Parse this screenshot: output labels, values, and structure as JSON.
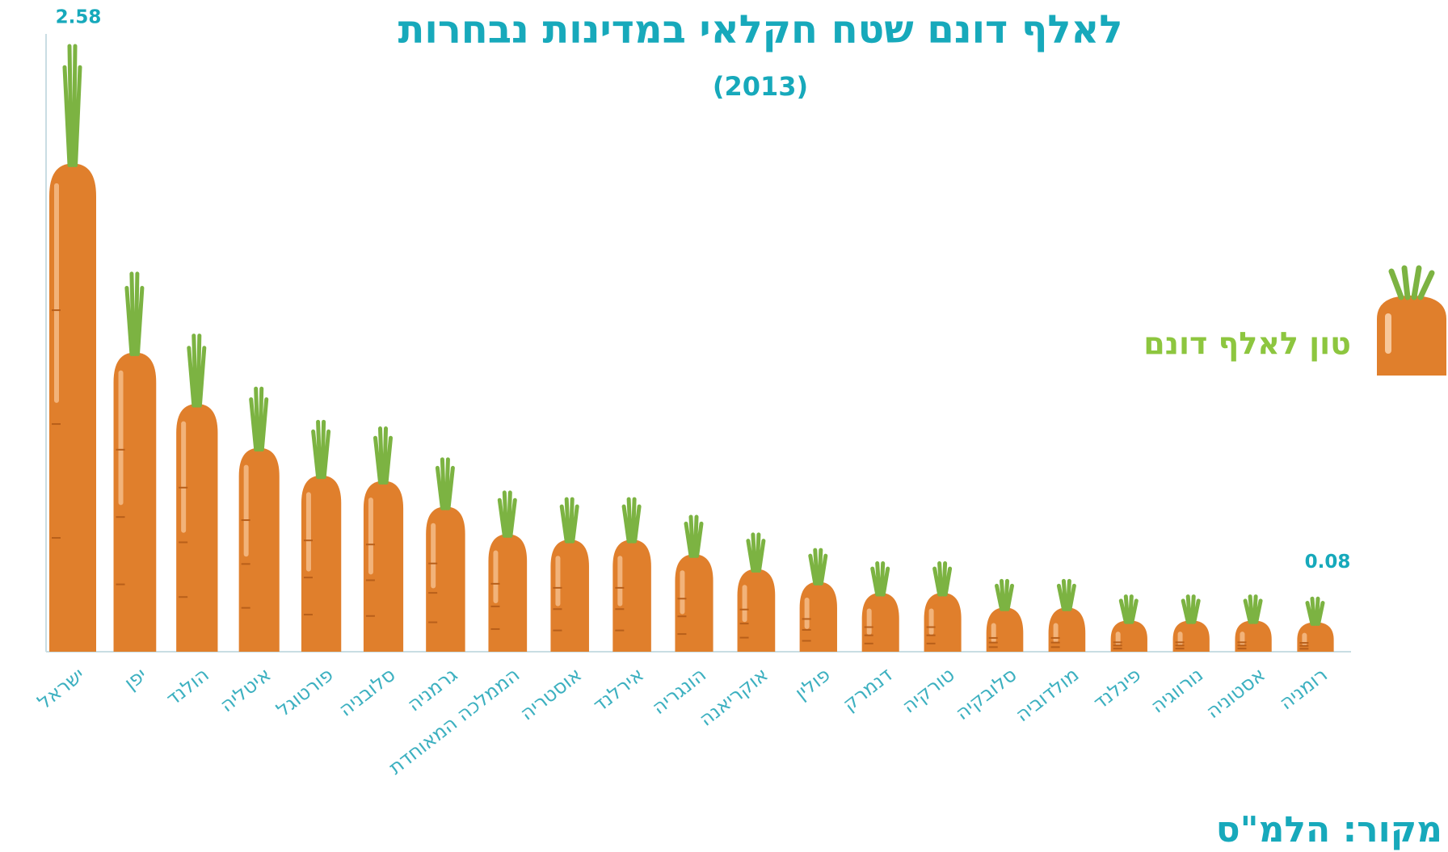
{
  "chart_data": {
    "type": "pictorial-bar",
    "title": "לאלף דונם שטח חקלאי במדינות נבחרות",
    "subtitle": "(2013)",
    "series_name": "טון לאלף דונם",
    "source": "מקור: הלמ\"ס",
    "categories": [
      "ישראל",
      "יפן",
      "הולנד",
      "איטליה",
      "פורטוגל",
      "סלובניה",
      "גרמניה",
      "הממלכה המאוחדת",
      "אוסטריה",
      "אירלנד",
      "הונגריה",
      "אוקריאנה",
      "פולין",
      "דנמרק",
      "טורקיה",
      "סלובקיה",
      "מולדוביה",
      "פינלנד",
      "נורווגיה",
      "אסטוניה",
      "רומניה"
    ],
    "values": [
      2.58,
      1.55,
      1.27,
      1.03,
      0.88,
      0.85,
      0.71,
      0.56,
      0.53,
      0.53,
      0.45,
      0.37,
      0.3,
      0.24,
      0.24,
      0.16,
      0.16,
      0.09,
      0.09,
      0.09,
      0.08
    ],
    "labeled_points": [
      0,
      20
    ],
    "color": "#e07f2c",
    "leaf_color": "#7cb342",
    "ylim": [
      -0.16,
      2.58
    ]
  }
}
